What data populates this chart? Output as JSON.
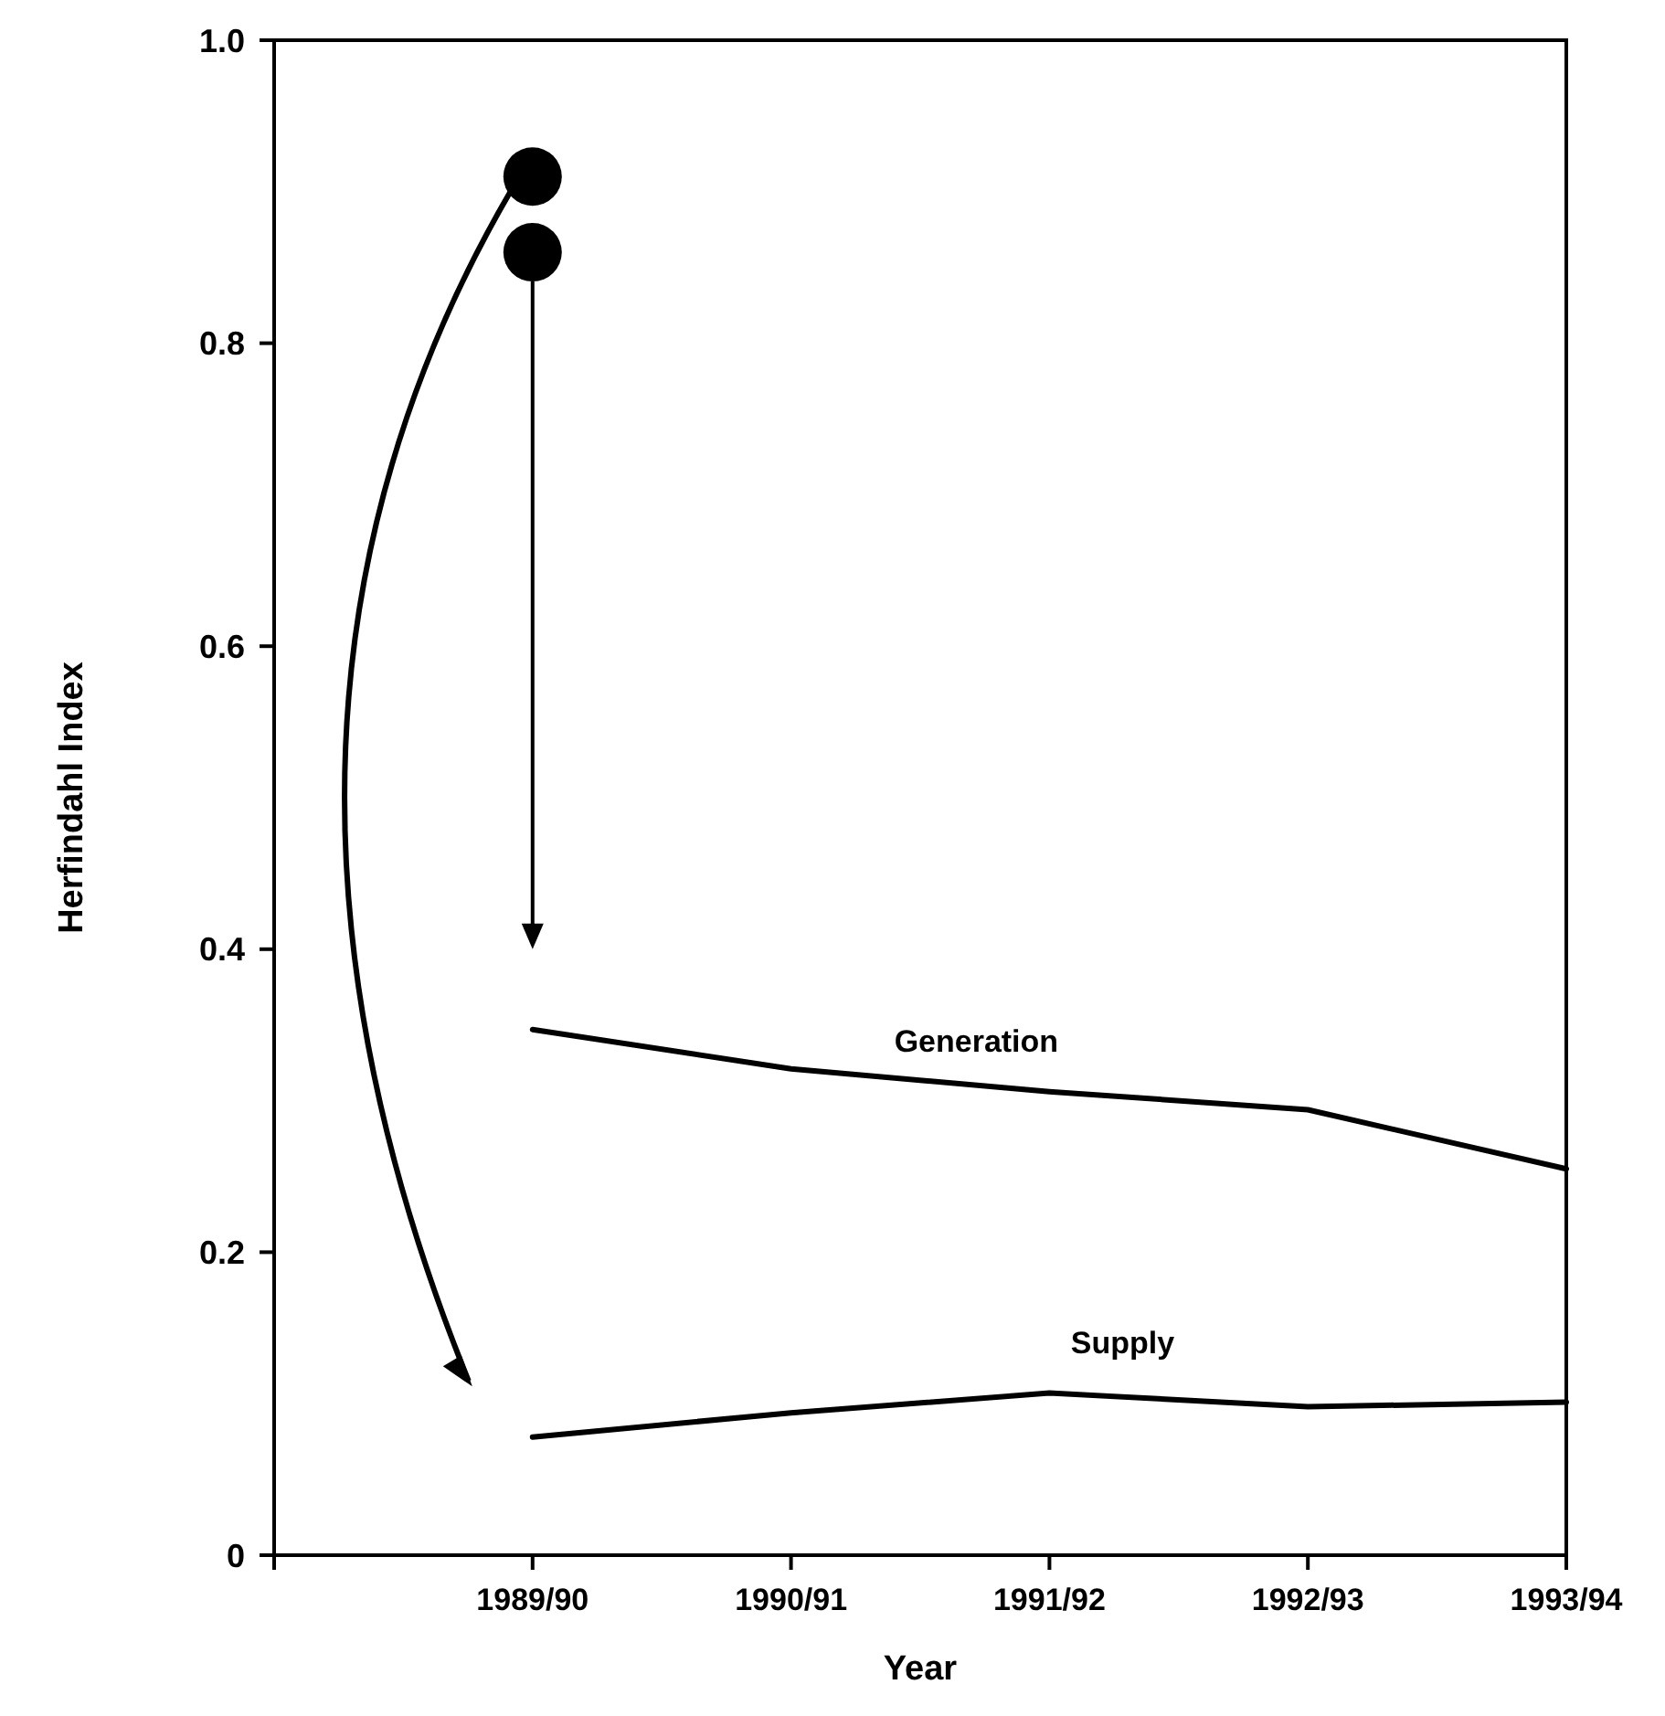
{
  "chart_data": {
    "type": "line",
    "xlabel": "Year",
    "ylabel": "Herfindahl Index",
    "categories": [
      null,
      "1989/90",
      "1990/91",
      "1991/92",
      "1992/93",
      "1993/94"
    ],
    "series": [
      {
        "name": "Generation",
        "color": "#000000",
        "values": [
          null,
          0.347,
          0.321,
          0.306,
          0.294,
          0.255
        ]
      },
      {
        "name": "Supply",
        "color": "#000000",
        "values": [
          null,
          0.078,
          0.094,
          0.107,
          0.098,
          0.101
        ]
      },
      {
        "type": "scatter",
        "color": "#000000",
        "x": [
          "1989/90",
          "1989/90"
        ],
        "values": [
          0.91,
          0.86
        ],
        "marker": "circle"
      }
    ],
    "ylim": [
      0,
      1
    ],
    "yticks": [
      0,
      0.2,
      0.4,
      0.6,
      0.8,
      {
        "value": 1,
        "label": "1.0"
      }
    ],
    "grid": false,
    "marker": "none",
    "line_style": "solid"
  }
}
